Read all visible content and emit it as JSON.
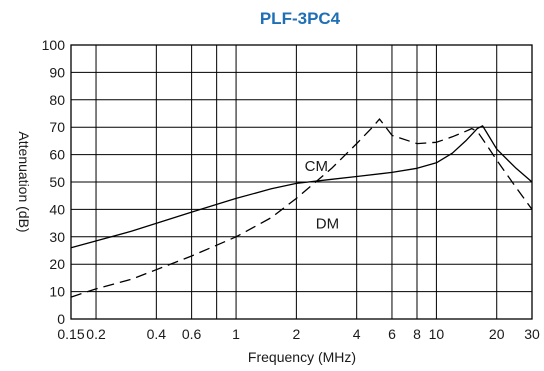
{
  "chart_data": {
    "type": "line",
    "title": "PLF-3PC4",
    "xlabel": "Frequency (MHz)",
    "ylabel": "Attenuation (dB)",
    "xscale": "log",
    "xlim": [
      0.15,
      30
    ],
    "ylim": [
      0,
      100
    ],
    "grid": true,
    "x_ticks": [
      0.15,
      0.2,
      0.4,
      0.6,
      1,
      2,
      4,
      6,
      8,
      10,
      20,
      30
    ],
    "x_tick_labels": [
      "0.15",
      "0.2",
      "0.4",
      "0.6",
      "1",
      "2",
      "4",
      "6",
      "8",
      "10",
      "20",
      "30"
    ],
    "x_minor_grid": [
      0.8
    ],
    "y_ticks": [
      0,
      10,
      20,
      30,
      40,
      50,
      60,
      70,
      80,
      90,
      100
    ],
    "y_tick_labels": [
      "0",
      "10",
      "20",
      "30",
      "40",
      "50",
      "60",
      "70",
      "80",
      "90",
      "100"
    ],
    "series": [
      {
        "name": "CM",
        "line_style": "solid",
        "color": "#000000",
        "x": [
          0.15,
          0.3,
          0.6,
          1,
          1.5,
          2,
          3,
          4,
          6,
          8,
          10,
          12,
          14,
          16,
          17,
          18,
          20,
          25,
          30
        ],
        "y": [
          26,
          32,
          39,
          44,
          47.5,
          49.5,
          51,
          52,
          53.5,
          55,
          57,
          60.5,
          65,
          69.5,
          70.5,
          67.5,
          62,
          55,
          50
        ]
      },
      {
        "name": "DM",
        "line_style": "dashed",
        "color": "#000000",
        "x": [
          0.15,
          0.2,
          0.3,
          0.4,
          0.6,
          1,
          1.5,
          2,
          3,
          4,
          4.8,
          5.2,
          6,
          8,
          10,
          12,
          14,
          15,
          16,
          18,
          20,
          25,
          30
        ],
        "y": [
          8,
          11,
          14.5,
          18,
          23,
          30,
          37,
          44,
          55,
          64,
          70,
          73,
          67,
          64,
          64.5,
          66.5,
          68.5,
          69.5,
          68.5,
          63,
          58,
          48,
          40
        ]
      }
    ],
    "annotations": [
      {
        "text": "CM",
        "x": 2.2,
        "y": 54
      },
      {
        "text": "DM",
        "x": 2.5,
        "y": 33
      }
    ]
  }
}
